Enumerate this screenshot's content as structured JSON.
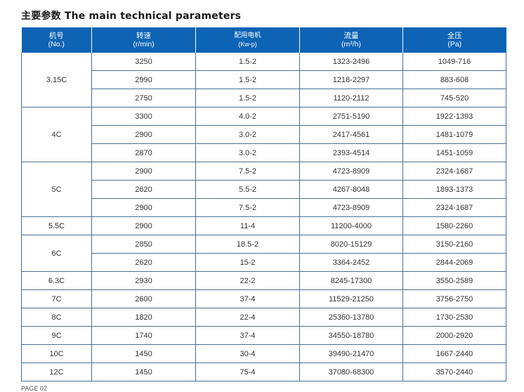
{
  "title": "主要参数 The main technical parameters",
  "header": [
    {
      "cn": "机号",
      "en": "(No.)"
    },
    {
      "cn": "转速",
      "en": "(r/min)"
    },
    {
      "cn": "配用电机",
      "en": "(Kw-p)"
    },
    {
      "cn": "流量",
      "en": "(m³/h)"
    },
    {
      "cn": "全压",
      "en": "(Pa)"
    }
  ],
  "groups": [
    {
      "model": "3.15C",
      "rows": [
        {
          "speed": "3250",
          "motor": "1.5-2",
          "flow": "1323-2496",
          "pressure": "1049-716"
        },
        {
          "speed": "2990",
          "motor": "1.5-2",
          "flow": "1218-2297",
          "pressure": "883-608"
        },
        {
          "speed": "2750",
          "motor": "1.5-2",
          "flow": "1120-2112",
          "pressure": "745-520"
        }
      ]
    },
    {
      "model": "4C",
      "rows": [
        {
          "speed": "3300",
          "motor": "4.0-2",
          "flow": "2751-5190",
          "pressure": "1922-1393"
        },
        {
          "speed": "2900",
          "motor": "3.0-2",
          "flow": "2417-4561",
          "pressure": "1481-1079"
        },
        {
          "speed": "2870",
          "motor": "3.0-2",
          "flow": "2393-4514",
          "pressure": "1451-1059"
        }
      ]
    },
    {
      "model": "5C",
      "rows": [
        {
          "speed": "2900",
          "motor": "7.5-2",
          "flow": "4723-8909",
          "pressure": "2324-1687"
        },
        {
          "speed": "2620",
          "motor": "5.5-2",
          "flow": "4267-8048",
          "pressure": "1893-1373"
        },
        {
          "speed": "2900",
          "motor": "7.5-2",
          "flow": "4723-8909",
          "pressure": "2324-1687"
        }
      ]
    },
    {
      "model": "5.5C",
      "rows": [
        {
          "speed": "2900",
          "motor": "11-4",
          "flow": "11200-4000",
          "pressure": "1580-2260"
        }
      ]
    },
    {
      "model": "6C",
      "rows": [
        {
          "speed": "2850",
          "motor": "18.5-2",
          "flow": "8020-15129",
          "pressure": "3150-2160"
        },
        {
          "speed": "2620",
          "motor": "15-2",
          "flow": "3364-2452",
          "pressure": "2844-2069"
        }
      ]
    },
    {
      "model": "6.3C",
      "rows": [
        {
          "speed": "2930",
          "motor": "22-2",
          "flow": "8245-17300",
          "pressure": "3550-2589"
        }
      ]
    },
    {
      "model": "7C",
      "rows": [
        {
          "speed": "2600",
          "motor": "37-4",
          "flow": "11529-21250",
          "pressure": "3756-2750"
        }
      ]
    },
    {
      "model": "8C",
      "rows": [
        {
          "speed": "1820",
          "motor": "22-4",
          "flow": "25360-13780",
          "pressure": "1730-2530"
        }
      ]
    },
    {
      "model": "9C",
      "rows": [
        {
          "speed": "1740",
          "motor": "37-4",
          "flow": "34550-18780",
          "pressure": "2000-2920"
        }
      ]
    },
    {
      "model": "10C",
      "rows": [
        {
          "speed": "1450",
          "motor": "30-4",
          "flow": "39490-21470",
          "pressure": "1667-2440"
        }
      ]
    },
    {
      "model": "12C",
      "rows": [
        {
          "speed": "1450",
          "motor": "75-4",
          "flow": "37080-68300",
          "pressure": "3570-2440"
        }
      ]
    }
  ],
  "footer": "PAGE 02"
}
